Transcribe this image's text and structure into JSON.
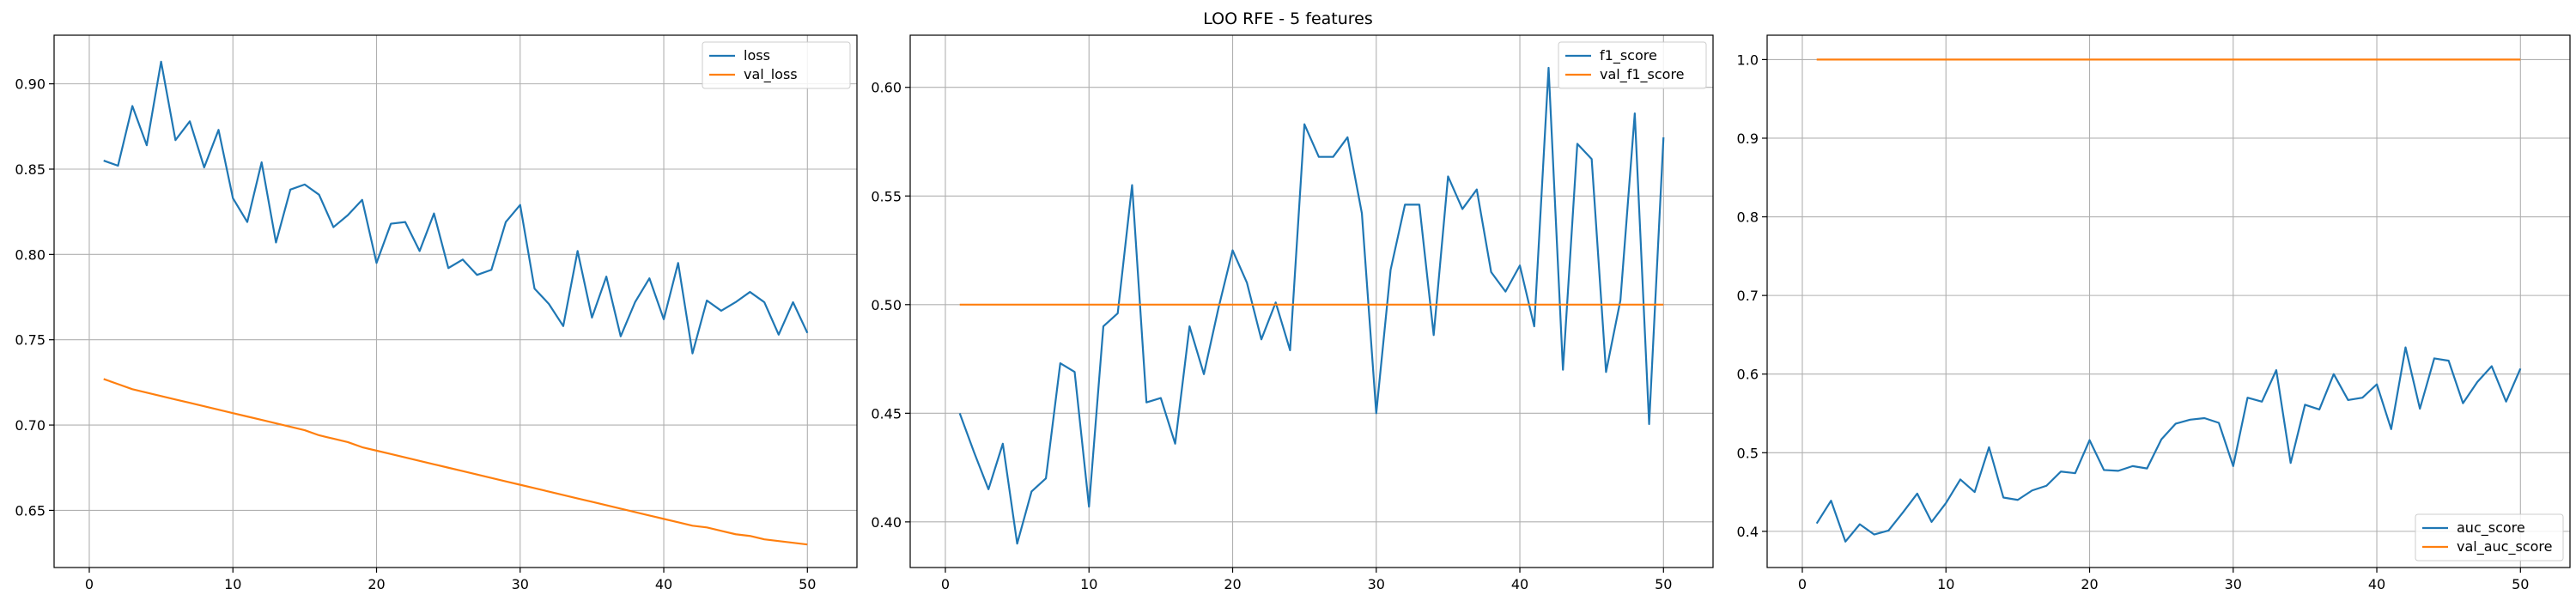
{
  "figure": {
    "title": "LOO RFE - 5 features"
  },
  "colors": {
    "train": "#1f77b4",
    "val": "#ff7f0e",
    "grid": "#b0b0b0",
    "axis": "#000000"
  },
  "chart_data": [
    {
      "type": "line",
      "title": "",
      "xlabel": "",
      "ylabel": "",
      "xlim": [
        -2.45,
        53.45
      ],
      "ylim": [
        0.6165,
        0.9285
      ],
      "xticks": [
        0,
        10,
        20,
        30,
        40,
        50
      ],
      "yticks": [
        0.65,
        0.7,
        0.75,
        0.8,
        0.85,
        0.9
      ],
      "ytick_labels": [
        "0.65",
        "0.70",
        "0.75",
        "0.80",
        "0.85",
        "0.90"
      ],
      "grid": true,
      "legend_position": "top-right",
      "x": [
        1,
        2,
        3,
        4,
        5,
        6,
        7,
        8,
        9,
        10,
        11,
        12,
        13,
        14,
        15,
        16,
        17,
        18,
        19,
        20,
        21,
        22,
        23,
        24,
        25,
        26,
        27,
        28,
        29,
        30,
        31,
        32,
        33,
        34,
        35,
        36,
        37,
        38,
        39,
        40,
        41,
        42,
        43,
        44,
        45,
        46,
        47,
        48,
        49,
        50
      ],
      "series": [
        {
          "name": "loss",
          "color_key": "train",
          "values": [
            0.855,
            0.852,
            0.887,
            0.864,
            0.913,
            0.867,
            0.878,
            0.851,
            0.873,
            0.833,
            0.819,
            0.854,
            0.807,
            0.838,
            0.841,
            0.835,
            0.816,
            0.823,
            0.832,
            0.795,
            0.818,
            0.819,
            0.802,
            0.824,
            0.792,
            0.797,
            0.788,
            0.791,
            0.819,
            0.829,
            0.78,
            0.771,
            0.758,
            0.802,
            0.763,
            0.787,
            0.752,
            0.772,
            0.786,
            0.762,
            0.795,
            0.742,
            0.773,
            0.767,
            0.772,
            0.778,
            0.772,
            0.753,
            0.772,
            0.754
          ]
        },
        {
          "name": "val_loss",
          "color_key": "val",
          "values": [
            0.727,
            0.724,
            0.721,
            0.719,
            0.717,
            0.715,
            0.713,
            0.711,
            0.709,
            0.707,
            0.705,
            0.703,
            0.701,
            0.699,
            0.697,
            0.694,
            0.692,
            0.69,
            0.687,
            0.685,
            0.683,
            0.681,
            0.679,
            0.677,
            0.675,
            0.673,
            0.671,
            0.669,
            0.667,
            0.665,
            0.663,
            0.661,
            0.659,
            0.657,
            0.655,
            0.653,
            0.651,
            0.649,
            0.647,
            0.645,
            0.643,
            0.641,
            0.64,
            0.638,
            0.636,
            0.635,
            0.633,
            0.632,
            0.631,
            0.63
          ]
        }
      ]
    },
    {
      "type": "line",
      "title": "",
      "xlabel": "",
      "ylabel": "",
      "xlim": [
        -2.45,
        53.45
      ],
      "ylim": [
        0.379,
        0.624
      ],
      "xticks": [
        0,
        10,
        20,
        30,
        40,
        50
      ],
      "yticks": [
        0.4,
        0.45,
        0.5,
        0.55,
        0.6
      ],
      "ytick_labels": [
        "0.40",
        "0.45",
        "0.50",
        "0.55",
        "0.60"
      ],
      "grid": true,
      "legend_position": "top-right",
      "x": [
        1,
        2,
        3,
        4,
        5,
        6,
        7,
        8,
        9,
        10,
        11,
        12,
        13,
        14,
        15,
        16,
        17,
        18,
        19,
        20,
        21,
        22,
        23,
        24,
        25,
        26,
        27,
        28,
        29,
        30,
        31,
        32,
        33,
        34,
        35,
        36,
        37,
        38,
        39,
        40,
        41,
        42,
        43,
        44,
        45,
        46,
        47,
        48,
        49,
        50
      ],
      "series": [
        {
          "name": "f1_score",
          "color_key": "train",
          "values": [
            0.45,
            0.432,
            0.415,
            0.436,
            0.39,
            0.414,
            0.42,
            0.473,
            0.469,
            0.407,
            0.49,
            0.496,
            0.555,
            0.455,
            0.457,
            0.436,
            0.49,
            0.468,
            0.498,
            0.525,
            0.51,
            0.484,
            0.501,
            0.479,
            0.583,
            0.568,
            0.568,
            0.577,
            0.542,
            0.45,
            0.516,
            0.546,
            0.546,
            0.486,
            0.559,
            0.544,
            0.553,
            0.515,
            0.506,
            0.518,
            0.49,
            0.609,
            0.47,
            0.574,
            0.567,
            0.469,
            0.502,
            0.588,
            0.445,
            0.577
          ]
        },
        {
          "name": "val_f1_score",
          "color_key": "val",
          "values": [
            0.5,
            0.5,
            0.5,
            0.5,
            0.5,
            0.5,
            0.5,
            0.5,
            0.5,
            0.5,
            0.5,
            0.5,
            0.5,
            0.5,
            0.5,
            0.5,
            0.5,
            0.5,
            0.5,
            0.5,
            0.5,
            0.5,
            0.5,
            0.5,
            0.5,
            0.5,
            0.5,
            0.5,
            0.5,
            0.5,
            0.5,
            0.5,
            0.5,
            0.5,
            0.5,
            0.5,
            0.5,
            0.5,
            0.5,
            0.5,
            0.5,
            0.5,
            0.5,
            0.5,
            0.5,
            0.5,
            0.5,
            0.5,
            0.5,
            0.5
          ]
        }
      ]
    },
    {
      "type": "line",
      "title": "",
      "xlabel": "",
      "ylabel": "",
      "xlim": [
        -2.45,
        53.45
      ],
      "ylim": [
        0.354,
        1.031
      ],
      "xticks": [
        0,
        10,
        20,
        30,
        40,
        50
      ],
      "yticks": [
        0.4,
        0.5,
        0.6,
        0.7,
        0.8,
        0.9,
        1.0
      ],
      "ytick_labels": [
        "0.4",
        "0.5",
        "0.6",
        "0.7",
        "0.8",
        "0.9",
        "1.0"
      ],
      "grid": true,
      "legend_position": "bottom-right",
      "x": [
        1,
        2,
        3,
        4,
        5,
        6,
        7,
        8,
        9,
        10,
        11,
        12,
        13,
        14,
        15,
        16,
        17,
        18,
        19,
        20,
        21,
        22,
        23,
        24,
        25,
        26,
        27,
        28,
        29,
        30,
        31,
        32,
        33,
        34,
        35,
        36,
        37,
        38,
        39,
        40,
        41,
        42,
        43,
        44,
        45,
        46,
        47,
        48,
        49,
        50
      ],
      "series": [
        {
          "name": "auc_score",
          "color_key": "train",
          "values": [
            0.41,
            0.439,
            0.387,
            0.409,
            0.396,
            0.401,
            0.424,
            0.448,
            0.412,
            0.436,
            0.466,
            0.45,
            0.507,
            0.443,
            0.44,
            0.452,
            0.458,
            0.476,
            0.474,
            0.516,
            0.478,
            0.477,
            0.483,
            0.48,
            0.517,
            0.537,
            0.542,
            0.544,
            0.538,
            0.483,
            0.57,
            0.565,
            0.605,
            0.487,
            0.561,
            0.555,
            0.6,
            0.567,
            0.57,
            0.587,
            0.53,
            0.634,
            0.556,
            0.62,
            0.617,
            0.563,
            0.59,
            0.61,
            0.565,
            0.607
          ]
        },
        {
          "name": "val_auc_score",
          "color_key": "val",
          "values": [
            1.0,
            1.0,
            1.0,
            1.0,
            1.0,
            1.0,
            1.0,
            1.0,
            1.0,
            1.0,
            1.0,
            1.0,
            1.0,
            1.0,
            1.0,
            1.0,
            1.0,
            1.0,
            1.0,
            1.0,
            1.0,
            1.0,
            1.0,
            1.0,
            1.0,
            1.0,
            1.0,
            1.0,
            1.0,
            1.0,
            1.0,
            1.0,
            1.0,
            1.0,
            1.0,
            1.0,
            1.0,
            1.0,
            1.0,
            1.0,
            1.0,
            1.0,
            1.0,
            1.0,
            1.0,
            1.0,
            1.0,
            1.0,
            1.0,
            1.0
          ]
        }
      ]
    }
  ]
}
